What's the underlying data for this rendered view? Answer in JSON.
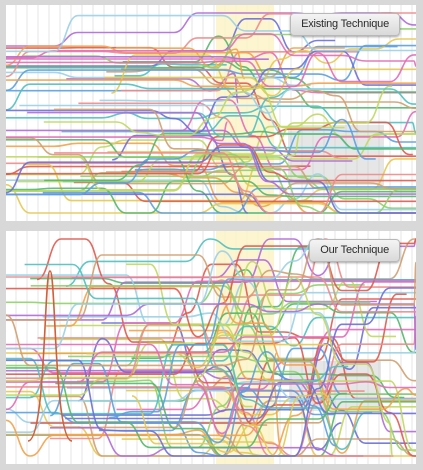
{
  "panels": {
    "top": {
      "label": "Existing Technique"
    },
    "bottom": {
      "label": "Our Technique"
    }
  },
  "colors": {
    "highlight_band": "#fbf3c8",
    "gray_block": "#c8c8c8",
    "gridline": "#e6e6e6",
    "line_palette": [
      "#e05a4f",
      "#f2a24a",
      "#e6c94f",
      "#8fd06b",
      "#52b86a",
      "#4fc0c0",
      "#5aa0e0",
      "#6b6fd8",
      "#b06ad8",
      "#e26bb8",
      "#f08a8a",
      "#9ad0e6",
      "#c0d860",
      "#d0a070"
    ]
  }
}
